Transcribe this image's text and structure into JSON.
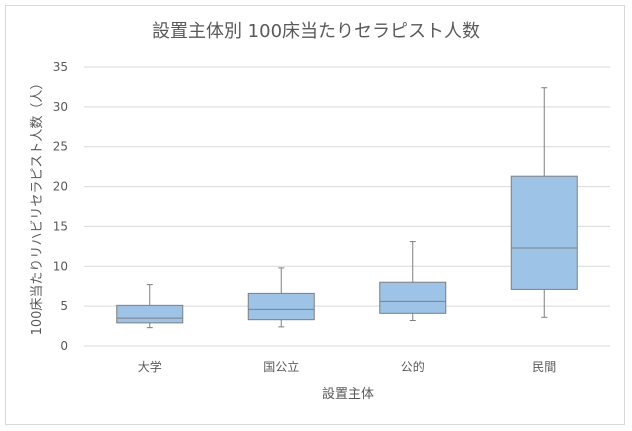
{
  "chart_data": {
    "type": "box",
    "title": "設置主体別 100床当たりセラピスト人数",
    "xlabel": "設置主体",
    "ylabel": "100床当たりリハビリセラピスト人数（人）",
    "ylim": [
      0,
      35
    ],
    "yticks": [
      0,
      5,
      10,
      15,
      20,
      25,
      30,
      35
    ],
    "grid": true,
    "categories": [
      "大学",
      "国公立",
      "公的",
      "民間"
    ],
    "boxes": [
      {
        "category": "大学",
        "min": 2.3,
        "q1": 2.9,
        "median": 3.5,
        "q3": 5.1,
        "max": 7.7
      },
      {
        "category": "国公立",
        "min": 2.4,
        "q1": 3.3,
        "median": 4.6,
        "q3": 6.6,
        "max": 9.8
      },
      {
        "category": "公的",
        "min": 3.2,
        "q1": 4.1,
        "median": 5.6,
        "q3": 8.0,
        "max": 13.1
      },
      {
        "category": "民間",
        "min": 3.6,
        "q1": 7.1,
        "median": 12.3,
        "q3": 21.3,
        "max": 32.4
      }
    ],
    "colors": {
      "box_fill": "#9dc3e6",
      "box_stroke": "#7f7f7f",
      "grid": "#d9d9d9",
      "text": "#595959"
    }
  }
}
